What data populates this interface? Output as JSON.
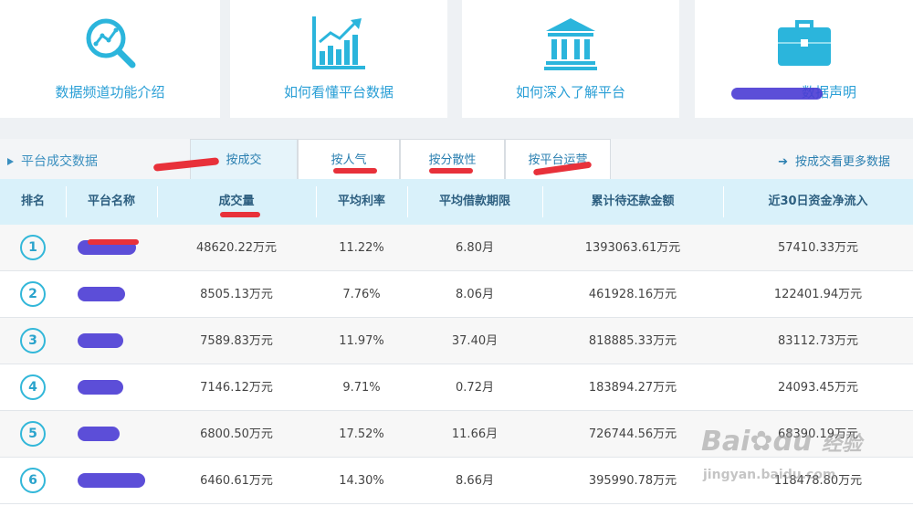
{
  "cards": [
    {
      "label": "数据频道功能介绍",
      "icon": "magnifier-chart-icon"
    },
    {
      "label": "如何看懂平台数据",
      "icon": "bar-chart-icon"
    },
    {
      "label": "如何深入了解平台",
      "icon": "bank-building-icon"
    },
    {
      "label": "数据声明",
      "icon": "briefcase-icon"
    }
  ],
  "section": {
    "title": "平台成交数据",
    "tabs": [
      "按成交",
      "按人气",
      "按分散性",
      "按平台运营"
    ],
    "more_link": "按成交看更多数据",
    "more_arrow": "➔"
  },
  "table": {
    "columns": [
      "排名",
      "平台名称",
      "成交量",
      "平均利率",
      "平均借款期限",
      "累计待还款金额",
      "近30日资金净流入"
    ],
    "rows": [
      {
        "rank": "1",
        "volume": "48620.22万元",
        "rate": "11.22%",
        "term": "6.80月",
        "pending": "1393063.61万元",
        "inflow": "57410.33万元"
      },
      {
        "rank": "2",
        "volume": "8505.13万元",
        "rate": "7.76%",
        "term": "8.06月",
        "pending": "461928.16万元",
        "inflow": "122401.94万元"
      },
      {
        "rank": "3",
        "volume": "7589.83万元",
        "rate": "11.97%",
        "term": "37.40月",
        "pending": "818885.33万元",
        "inflow": "83112.73万元"
      },
      {
        "rank": "4",
        "volume": "7146.12万元",
        "rate": "9.71%",
        "term": "0.72月",
        "pending": "183894.27万元",
        "inflow": "24093.45万元"
      },
      {
        "rank": "5",
        "volume": "6800.50万元",
        "rate": "17.52%",
        "term": "11.66月",
        "pending": "726744.56万元",
        "inflow": "68390.19万元"
      },
      {
        "rank": "6",
        "volume": "6460.61万元",
        "rate": "14.30%",
        "term": "8.66月",
        "pending": "395990.78万元",
        "inflow": "118478.80万元"
      }
    ]
  },
  "watermark": {
    "brand": "Bai",
    "brand2": "du",
    "brand_cn": "经验",
    "url": "jingyan.baidu.com"
  },
  "colors": {
    "accent": "#2a9fd6",
    "header_bg": "#d9f1fa",
    "redaction": "#4a3bd4",
    "annotation": "#e8313a"
  }
}
